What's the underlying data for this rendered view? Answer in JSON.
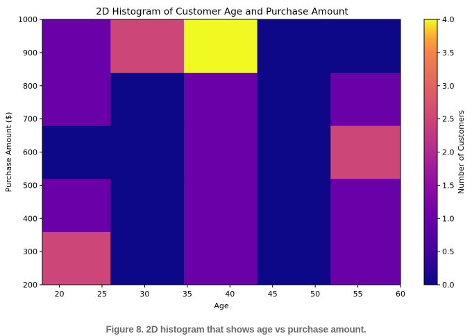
{
  "chart_data": {
    "type": "heatmap",
    "title": "2D Histogram of Customer Age and Purchase Amount",
    "xlabel": "Age",
    "ylabel": "Purchase Amount ($)",
    "x_bin_edges": [
      18,
      26,
      34.6,
      43.2,
      51.8,
      60
    ],
    "y_bin_edges": [
      200,
      360,
      520,
      680,
      840,
      1000
    ],
    "xlim": [
      18,
      60
    ],
    "ylim": [
      200,
      1000
    ],
    "x_ticks": [
      20,
      25,
      30,
      35,
      40,
      45,
      50,
      55,
      60
    ],
    "y_ticks": [
      200,
      300,
      400,
      500,
      600,
      700,
      800,
      900,
      1000
    ],
    "counts": [
      [
        2,
        0,
        1,
        0,
        1
      ],
      [
        1,
        0,
        1,
        0,
        1
      ],
      [
        0,
        0,
        1,
        0,
        2
      ],
      [
        1,
        0,
        1,
        0,
        1
      ],
      [
        1,
        2,
        4,
        0,
        0
      ]
    ],
    "counts_note": "rows ordered from bottom (200-360) to top (840-1000); columns from left (age 18) to right (age 60)",
    "colormap": "plasma",
    "colorbar": {
      "label": "Number of Customers",
      "range": [
        0.0,
        4.0
      ],
      "ticks": [
        "0.0",
        "0.5",
        "1.0",
        "1.5",
        "2.0",
        "2.5",
        "3.0",
        "3.5",
        "4.0"
      ],
      "colors": {
        "0": "#0d0887",
        "1": "#6a00a8",
        "2": "#cc4778",
        "3": "#f89540",
        "4": "#f0f921"
      }
    },
    "grid": false
  },
  "caption": "Figure 8. 2D histogram that shows age vs purchase amount."
}
